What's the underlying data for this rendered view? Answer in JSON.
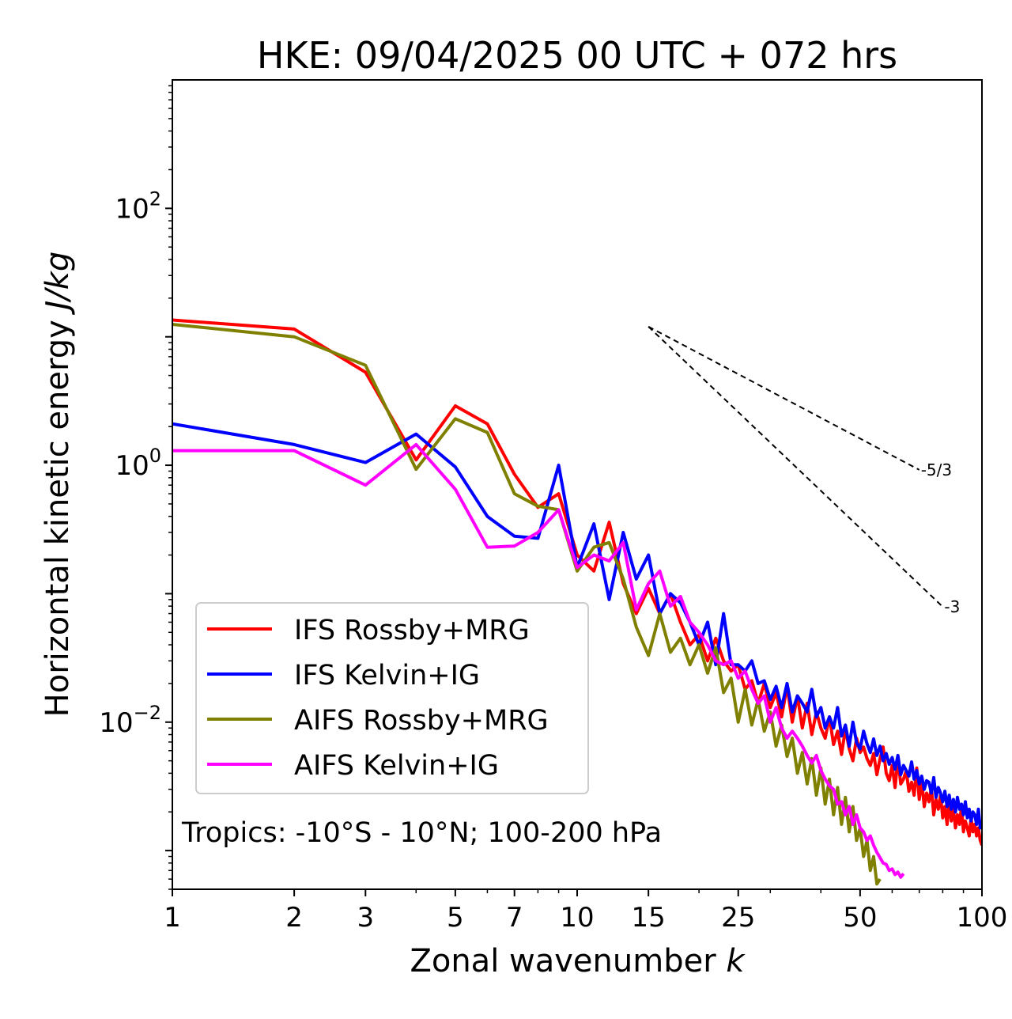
{
  "chart_data": {
    "type": "line",
    "title": "HKE: 09/04/2025 00 UTC + 072 hrs",
    "xlabel": "Zonal wavenumber",
    "xlabel_italic": "k",
    "ylabel": "Horizontal kinetic energy",
    "ylabel_italic": "J/kg",
    "xscale": "log",
    "yscale": "log",
    "xlim": [
      1,
      100
    ],
    "ylim": [
      0.0005,
      1000
    ],
    "x_ticks": [
      1,
      2,
      3,
      5,
      7,
      10,
      15,
      25,
      50,
      100
    ],
    "x_tick_labels": [
      "1",
      "2",
      "3",
      "5",
      "7",
      "10",
      "15",
      "25",
      "50",
      "100"
    ],
    "y_ticks": [
      {
        "value": 100,
        "base": "10",
        "exp": "2"
      },
      {
        "value": 1,
        "base": "10",
        "exp": "0"
      },
      {
        "value": 0.01,
        "base": "10",
        "exp": "−2"
      }
    ],
    "legend_position": "lower-left",
    "annotation": "Tropics: -10°S - 10°N; 100-200 hPa",
    "reference_lines": [
      {
        "label": "-5/3",
        "slope": -1.6667,
        "x_start": 15,
        "y_start": 12,
        "x_end": 70
      },
      {
        "label": "-3",
        "slope": -3,
        "x_start": 15,
        "y_start": 12,
        "x_end": 80
      }
    ],
    "series": [
      {
        "name": "IFS Rossby+MRG",
        "color": "#ff0000",
        "x": [
          1,
          2,
          3,
          4,
          5,
          6,
          7,
          8,
          9,
          10,
          11,
          12,
          13,
          14,
          15,
          16,
          17,
          18,
          19,
          20,
          21,
          22,
          23,
          24,
          25,
          26,
          27,
          28,
          29,
          30,
          31,
          32,
          33,
          34,
          35,
          36,
          37,
          38,
          39,
          40,
          41,
          42,
          43,
          44,
          45,
          46,
          47,
          48,
          49,
          50,
          51,
          52,
          53,
          54,
          55,
          56,
          57,
          58,
          59,
          60,
          61,
          62,
          63,
          64,
          65,
          66,
          67,
          68,
          69,
          70,
          71,
          72,
          73,
          74,
          75,
          76,
          77,
          78,
          79,
          80,
          81,
          82,
          83,
          84,
          85,
          86,
          87,
          88,
          89,
          90,
          91,
          92,
          93,
          94,
          95,
          96,
          97,
          98,
          99,
          100
        ],
        "y": [
          13.5,
          11.5,
          5.3,
          1.1,
          2.9,
          2.1,
          0.85,
          0.47,
          0.6,
          0.2,
          0.15,
          0.36,
          0.12,
          0.07,
          0.11,
          0.07,
          0.1,
          0.06,
          0.04,
          0.048,
          0.03,
          0.045,
          0.03,
          0.025,
          0.028,
          0.018,
          0.021,
          0.014,
          0.02,
          0.013,
          0.017,
          0.011,
          0.019,
          0.01,
          0.016,
          0.009,
          0.014,
          0.008,
          0.012,
          0.009,
          0.0075,
          0.011,
          0.0067,
          0.0085,
          0.0056,
          0.0089,
          0.0062,
          0.005,
          0.0075,
          0.0058,
          0.0064,
          0.0052,
          0.0046,
          0.0057,
          0.0039,
          0.0052,
          0.0064,
          0.004,
          0.0035,
          0.0046,
          0.0031,
          0.0052,
          0.0033,
          0.0036,
          0.0042,
          0.0029,
          0.0034,
          0.0027,
          0.0044,
          0.0025,
          0.0035,
          0.0022,
          0.0028,
          0.0024,
          0.0031,
          0.0019,
          0.0025,
          0.0021,
          0.0027,
          0.0018,
          0.0022,
          0.0016,
          0.0024,
          0.0017,
          0.0021,
          0.0015,
          0.0019,
          0.0016,
          0.0022,
          0.0014,
          0.0017,
          0.0015,
          0.0013,
          0.0018,
          0.0014,
          0.0016,
          0.0013,
          0.0015,
          0.0012,
          0.0011
        ]
      },
      {
        "name": "IFS Kelvin+IG",
        "color": "#0000ff",
        "x": [
          1,
          2,
          3,
          4,
          5,
          6,
          7,
          8,
          9,
          10,
          11,
          12,
          13,
          14,
          15,
          16,
          17,
          18,
          19,
          20,
          21,
          22,
          23,
          24,
          25,
          26,
          27,
          28,
          29,
          30,
          31,
          32,
          33,
          34,
          35,
          36,
          37,
          38,
          39,
          40,
          41,
          42,
          43,
          44,
          45,
          46,
          47,
          48,
          49,
          50,
          51,
          52,
          53,
          54,
          55,
          56,
          57,
          58,
          59,
          60,
          61,
          62,
          63,
          64,
          65,
          66,
          67,
          68,
          69,
          70,
          71,
          72,
          73,
          74,
          75,
          76,
          77,
          78,
          79,
          80,
          81,
          82,
          83,
          84,
          85,
          86,
          87,
          88,
          89,
          90,
          91,
          92,
          93,
          94,
          95,
          96,
          97,
          98,
          99,
          100
        ],
        "y": [
          2.1,
          1.45,
          1.05,
          1.75,
          0.97,
          0.4,
          0.28,
          0.27,
          1.0,
          0.16,
          0.35,
          0.09,
          0.3,
          0.13,
          0.2,
          0.07,
          0.1,
          0.085,
          0.06,
          0.04,
          0.06,
          0.028,
          0.07,
          0.028,
          0.028,
          0.025,
          0.03,
          0.02,
          0.021,
          0.015,
          0.019,
          0.013,
          0.02,
          0.012,
          0.016,
          0.014,
          0.012,
          0.018,
          0.011,
          0.013,
          0.009,
          0.011,
          0.009,
          0.013,
          0.0078,
          0.0095,
          0.0065,
          0.01,
          0.0069,
          0.0062,
          0.0085,
          0.0068,
          0.0058,
          0.0074,
          0.0055,
          0.0065,
          0.005,
          0.0057,
          0.0047,
          0.0053,
          0.0043,
          0.0055,
          0.0039,
          0.0046,
          0.0042,
          0.0038,
          0.0049,
          0.0036,
          0.0042,
          0.0033,
          0.0038,
          0.003,
          0.0035,
          0.0034,
          0.0028,
          0.0037,
          0.0026,
          0.0031,
          0.0028,
          0.0024,
          0.0029,
          0.0022,
          0.0027,
          0.0021,
          0.0025,
          0.002,
          0.0026,
          0.0021,
          0.0023,
          0.0019,
          0.0024,
          0.0018,
          0.0021,
          0.0017,
          0.002,
          0.0019,
          0.0016,
          0.0021,
          0.0015,
          0.0017
        ]
      },
      {
        "name": "AIFS Rossby+MRG",
        "color": "#808000",
        "x": [
          1,
          2,
          3,
          4,
          5,
          6,
          7,
          8,
          9,
          10,
          11,
          12,
          13,
          14,
          15,
          16,
          17,
          18,
          19,
          20,
          21,
          22,
          23,
          24,
          25,
          26,
          27,
          28,
          29,
          30,
          31,
          32,
          33,
          34,
          35,
          36,
          37,
          38,
          39,
          40,
          41,
          42,
          43,
          44,
          45,
          46,
          47,
          48,
          49,
          50,
          51,
          52,
          53,
          54,
          55,
          56
        ],
        "y": [
          12.5,
          10,
          6.0,
          0.93,
          2.3,
          1.8,
          0.6,
          0.48,
          0.45,
          0.15,
          0.23,
          0.25,
          0.13,
          0.055,
          0.033,
          0.07,
          0.035,
          0.045,
          0.028,
          0.04,
          0.024,
          0.038,
          0.017,
          0.022,
          0.01,
          0.018,
          0.0095,
          0.015,
          0.0085,
          0.012,
          0.0065,
          0.0095,
          0.0054,
          0.0075,
          0.004,
          0.0058,
          0.0033,
          0.0052,
          0.0027,
          0.0044,
          0.0023,
          0.0036,
          0.0019,
          0.0031,
          0.0016,
          0.0026,
          0.0014,
          0.0022,
          0.0012,
          0.0015,
          0.0009,
          0.0012,
          0.0007,
          0.0009,
          0.00055,
          0.0006
        ]
      },
      {
        "name": "AIFS Kelvin+IG",
        "color": "#ff00ff",
        "x": [
          1,
          2,
          3,
          4,
          5,
          6,
          7,
          8,
          9,
          10,
          11,
          12,
          13,
          14,
          15,
          16,
          17,
          18,
          19,
          20,
          21,
          22,
          23,
          24,
          25,
          26,
          27,
          28,
          29,
          30,
          31,
          32,
          33,
          34,
          35,
          36,
          37,
          38,
          39,
          40,
          41,
          42,
          43,
          44,
          45,
          46,
          47,
          48,
          49,
          50,
          51,
          52,
          53,
          54,
          55,
          56,
          57,
          58,
          59,
          60,
          61,
          62,
          63,
          64
        ],
        "y": [
          1.3,
          1.3,
          0.7,
          1.45,
          0.65,
          0.23,
          0.235,
          0.3,
          0.45,
          0.16,
          0.2,
          0.18,
          0.25,
          0.075,
          0.12,
          0.15,
          0.08,
          0.095,
          0.06,
          0.05,
          0.04,
          0.03,
          0.028,
          0.03,
          0.022,
          0.025,
          0.018,
          0.014,
          0.016,
          0.01,
          0.013,
          0.009,
          0.0075,
          0.0085,
          0.0075,
          0.0065,
          0.0055,
          0.0048,
          0.0055,
          0.0042,
          0.0036,
          0.0032,
          0.003,
          0.0023,
          0.0024,
          0.0019,
          0.0022,
          0.0016,
          0.0019,
          0.0015,
          0.0014,
          0.0012,
          0.0013,
          0.0011,
          0.00097,
          0.00088,
          0.0008,
          0.00078,
          0.0007,
          0.00072,
          0.00065,
          0.00068,
          0.00062,
          0.00066
        ]
      }
    ]
  }
}
